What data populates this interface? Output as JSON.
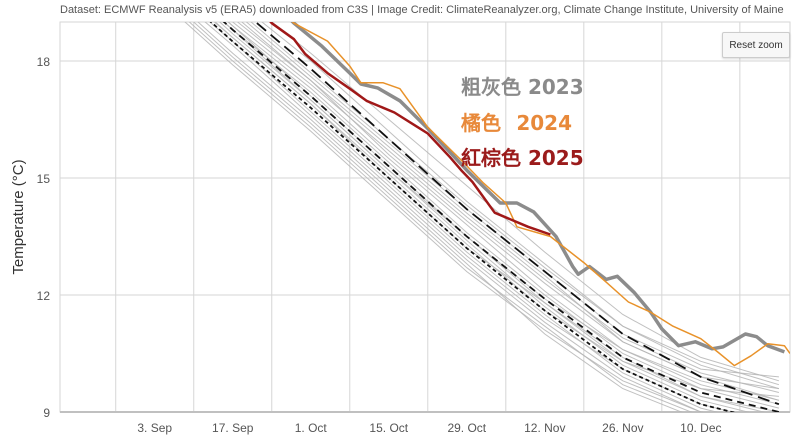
{
  "credit": "Dataset: ECMWF Reanalysis v5 (ERA5) downloaded from C3S | Image Credit: ClimateReanalyzer.org, Climate Change Institute, University of Maine",
  "reset_zoom_label": "Reset zoom",
  "chart_data": {
    "type": "line",
    "ylabel": "Temperature (°C)",
    "xlabel": "",
    "xlim": [
      "08-17",
      "12-26"
    ],
    "ylim": [
      9,
      19
    ],
    "yticks": [
      9,
      12,
      15,
      18
    ],
    "xticks": [
      "3. Sep",
      "17. Sep",
      "1. Oct",
      "15. Oct",
      "29. Oct",
      "12. Nov",
      "26. Nov",
      "10. Dec"
    ],
    "xtick_dates": [
      "09-03",
      "09-17",
      "10-01",
      "10-15",
      "10-29",
      "11-12",
      "11-26",
      "12-10"
    ],
    "grid": true,
    "legend": {
      "placement": "top-center",
      "entries": [
        {
          "label": "粗灰色 2023",
          "color": "#8a8a8a"
        },
        {
          "label": "橘色",
          "year": "2024",
          "color": "#e8893a"
        },
        {
          "label": "紅棕色 2025",
          "color": "#9b1b1b"
        }
      ]
    },
    "highlight_series": [
      {
        "year": "2023",
        "color": "#8c8c8c",
        "points": [
          [
            "09-25",
            19.4
          ],
          [
            "09-28",
            18.97
          ],
          [
            "10-03",
            18.38
          ],
          [
            "10-08",
            17.69
          ],
          [
            "10-10",
            17.41
          ],
          [
            "10-13",
            17.31
          ],
          [
            "10-17",
            16.98
          ],
          [
            "10-22",
            16.27
          ],
          [
            "10-29",
            15.2
          ],
          [
            "11-04",
            14.36
          ],
          [
            "11-07",
            14.36
          ],
          [
            "11-10",
            14.13
          ],
          [
            "11-14",
            13.5
          ],
          [
            "11-17",
            12.73
          ],
          [
            "11-18",
            12.53
          ],
          [
            "11-20",
            12.73
          ],
          [
            "11-23",
            12.4
          ],
          [
            "11-25",
            12.48
          ],
          [
            "11-28",
            12.07
          ],
          [
            "12-01",
            11.56
          ],
          [
            "12-03",
            11.13
          ],
          [
            "12-06",
            10.7
          ],
          [
            "12-09",
            10.8
          ],
          [
            "12-12",
            10.62
          ],
          [
            "12-14",
            10.67
          ],
          [
            "12-18",
            11.0
          ],
          [
            "12-20",
            10.93
          ],
          [
            "12-22",
            10.7
          ],
          [
            "12-25",
            10.54
          ]
        ]
      },
      {
        "year": "2024",
        "color": "#e8922a",
        "points": [
          [
            "09-25",
            19.4
          ],
          [
            "09-28",
            18.97
          ],
          [
            "10-04",
            18.51
          ],
          [
            "10-08",
            17.87
          ],
          [
            "10-10",
            17.44
          ],
          [
            "10-14",
            17.44
          ],
          [
            "10-17",
            17.29
          ],
          [
            "10-22",
            16.3
          ],
          [
            "10-28",
            15.46
          ],
          [
            "11-01",
            14.87
          ],
          [
            "11-05",
            14.36
          ],
          [
            "11-07",
            13.75
          ],
          [
            "11-13",
            13.5
          ],
          [
            "11-19",
            12.83
          ],
          [
            "11-23",
            12.33
          ],
          [
            "11-27",
            11.82
          ],
          [
            "12-01",
            11.56
          ],
          [
            "12-05",
            11.2
          ],
          [
            "12-10",
            10.88
          ],
          [
            "12-13",
            10.54
          ],
          [
            "12-16",
            10.19
          ],
          [
            "12-19",
            10.44
          ],
          [
            "12-22",
            10.75
          ],
          [
            "12-25",
            10.7
          ],
          [
            "12-26",
            10.5
          ]
        ]
      },
      {
        "year": "2025",
        "color": "#a01818",
        "points": [
          [
            "09-22",
            19.3
          ],
          [
            "09-24",
            18.97
          ],
          [
            "09-28",
            18.56
          ],
          [
            "09-30",
            18.18
          ],
          [
            "10-04",
            17.69
          ],
          [
            "10-08",
            17.29
          ],
          [
            "10-11",
            16.98
          ],
          [
            "10-16",
            16.68
          ],
          [
            "10-22",
            16.14
          ],
          [
            "10-26",
            15.53
          ],
          [
            "10-28",
            15.2
          ],
          [
            "10-30",
            14.9
          ],
          [
            "11-03",
            14.11
          ],
          [
            "11-09",
            13.75
          ],
          [
            "11-13",
            13.55
          ]
        ]
      }
    ],
    "dashed_series": [
      {
        "style": "long-dash",
        "dates": [
          "08-20",
          "09-03",
          "09-17",
          "10-01",
          "10-15",
          "10-29",
          "11-12",
          "11-26",
          "12-10",
          "12-24"
        ],
        "values": [
          22.8,
          21.2,
          19.5,
          17.8,
          16.0,
          14.2,
          12.6,
          11.0,
          9.9,
          9.2
        ]
      },
      {
        "style": "dash",
        "dates": [
          "08-20",
          "09-03",
          "09-17",
          "10-01",
          "10-15",
          "10-29",
          "11-12",
          "11-26",
          "12-10",
          "12-24"
        ],
        "values": [
          22.3,
          20.6,
          18.8,
          17.1,
          15.3,
          13.5,
          11.9,
          10.4,
          9.5,
          9.0
        ]
      },
      {
        "style": "short-dash",
        "dates": [
          "08-20",
          "09-03",
          "09-17",
          "10-01",
          "10-15",
          "10-29",
          "11-12",
          "11-26",
          "12-10",
          "12-24"
        ],
        "values": [
          22.0,
          20.3,
          18.5,
          16.8,
          15.0,
          13.2,
          11.6,
          10.1,
          9.2,
          8.7
        ]
      }
    ],
    "other_years": {
      "color": "#b5b5b5",
      "dates": [
        "08-20",
        "09-03",
        "09-17",
        "10-01",
        "10-15",
        "10-29",
        "11-12",
        "11-26",
        "12-10",
        "12-24"
      ],
      "series": [
        [
          22.0,
          20.2,
          18.5,
          16.7,
          14.9,
          13.1,
          11.5,
          10.0,
          9.1,
          8.6
        ],
        [
          22.6,
          20.9,
          19.1,
          17.5,
          15.6,
          13.9,
          12.3,
          10.8,
          9.9,
          9.3
        ],
        [
          21.8,
          20.0,
          18.2,
          16.5,
          14.7,
          12.9,
          11.3,
          9.9,
          9.0,
          8.5
        ],
        [
          22.9,
          21.3,
          19.6,
          18.0,
          16.2,
          14.4,
          12.8,
          11.2,
          10.2,
          9.6
        ],
        [
          22.2,
          20.5,
          18.7,
          17.0,
          15.2,
          13.4,
          11.7,
          10.2,
          9.3,
          8.8
        ],
        [
          21.6,
          19.8,
          18.0,
          16.3,
          14.5,
          12.7,
          11.2,
          9.7,
          8.9,
          8.4
        ],
        [
          22.4,
          20.7,
          18.9,
          17.3,
          15.5,
          13.8,
          12.1,
          10.6,
          9.7,
          9.2
        ],
        [
          23.1,
          21.5,
          19.8,
          18.2,
          16.5,
          14.8,
          13.1,
          11.5,
          10.4,
          9.8
        ],
        [
          22.1,
          20.4,
          18.6,
          16.9,
          15.0,
          13.2,
          11.8,
          10.3,
          9.6,
          9.1
        ],
        [
          21.9,
          20.1,
          18.4,
          16.6,
          14.8,
          13.0,
          11.4,
          10.1,
          9.2,
          8.7
        ],
        [
          22.5,
          20.8,
          19.0,
          17.4,
          15.7,
          14.0,
          12.4,
          10.9,
          10.0,
          9.5
        ],
        [
          22.7,
          21.0,
          19.3,
          17.6,
          15.9,
          14.2,
          12.6,
          11.0,
          10.1,
          9.9
        ],
        [
          21.7,
          19.9,
          18.1,
          16.4,
          14.6,
          12.8,
          11.0,
          9.6,
          8.8,
          8.3
        ],
        [
          22.3,
          20.6,
          18.8,
          17.2,
          15.4,
          13.6,
          12.0,
          10.5,
          9.6,
          9.4
        ],
        [
          22.0,
          20.3,
          18.6,
          16.9,
          15.1,
          13.3,
          11.6,
          10.3,
          9.4,
          9.0
        ],
        [
          22.8,
          21.1,
          19.4,
          17.7,
          16.0,
          14.3,
          12.7,
          11.2,
          10.3,
          9.7
        ],
        [
          21.5,
          19.7,
          17.9,
          16.2,
          14.4,
          12.6,
          11.1,
          9.8,
          9.0,
          8.6
        ],
        [
          22.4,
          20.6,
          18.9,
          17.1,
          15.3,
          13.5,
          11.9,
          10.6,
          9.8,
          9.3
        ],
        [
          22.2,
          20.5,
          18.8,
          17.0,
          15.2,
          13.5,
          11.8,
          10.4,
          9.4,
          8.9
        ],
        [
          22.6,
          20.9,
          19.2,
          17.5,
          15.8,
          14.1,
          12.5,
          10.8,
          9.9,
          9.6
        ]
      ]
    }
  }
}
